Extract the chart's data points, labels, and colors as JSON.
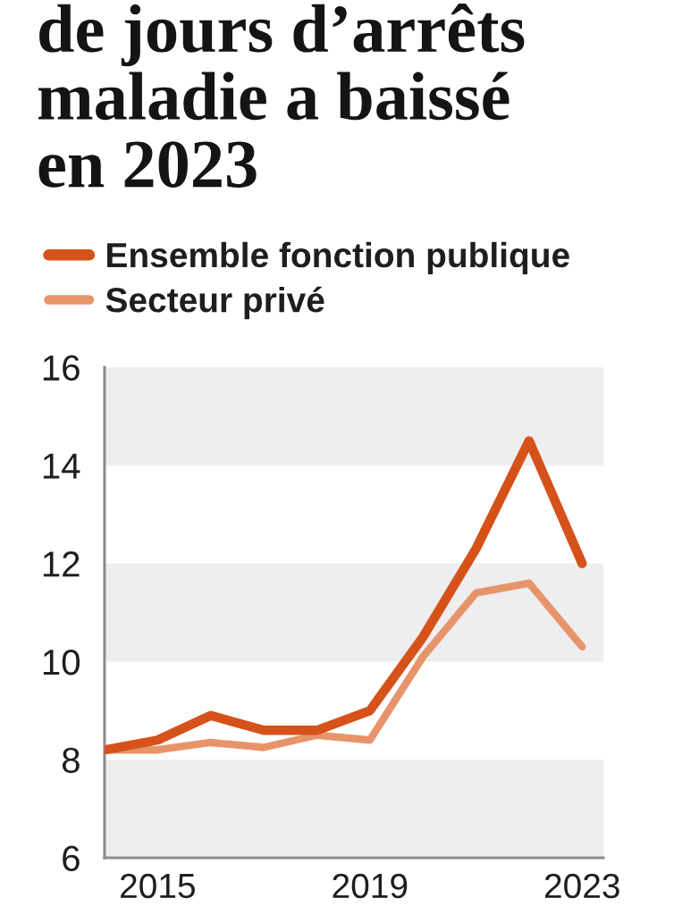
{
  "chart_data": {
    "type": "line",
    "title": "de jours d’arrêts\nmaladie a baissé\nen 2023",
    "x": [
      2014,
      2015,
      2016,
      2017,
      2018,
      2019,
      2020,
      2021,
      2022,
      2023
    ],
    "xlim": [
      2014,
      2023.4
    ],
    "xticks": [
      2015,
      2019,
      2023
    ],
    "ylim": [
      6,
      16
    ],
    "yticks": [
      6,
      8,
      10,
      12,
      14,
      16
    ],
    "grid": false,
    "legend": "top left",
    "line_style": "solid",
    "bands": [
      {
        "axis": "y",
        "from": 6,
        "to": 8,
        "color": "#eeeef0"
      },
      {
        "axis": "y",
        "from": 10,
        "to": 12,
        "color": "#eeeef0"
      },
      {
        "axis": "y",
        "from": 14,
        "to": 16,
        "color": "#eeeef0"
      }
    ],
    "series": [
      {
        "name": "Ensemble fonction publique",
        "color": "#d5521b",
        "values": [
          8.2,
          8.4,
          8.9,
          8.6,
          8.6,
          9.0,
          10.5,
          12.3,
          14.5,
          12.0
        ]
      },
      {
        "name": "Secteur privé",
        "color": "#e8946a",
        "values": [
          8.2,
          8.2,
          8.35,
          8.25,
          8.5,
          8.4,
          10.1,
          11.4,
          11.6,
          10.3
        ]
      }
    ]
  }
}
